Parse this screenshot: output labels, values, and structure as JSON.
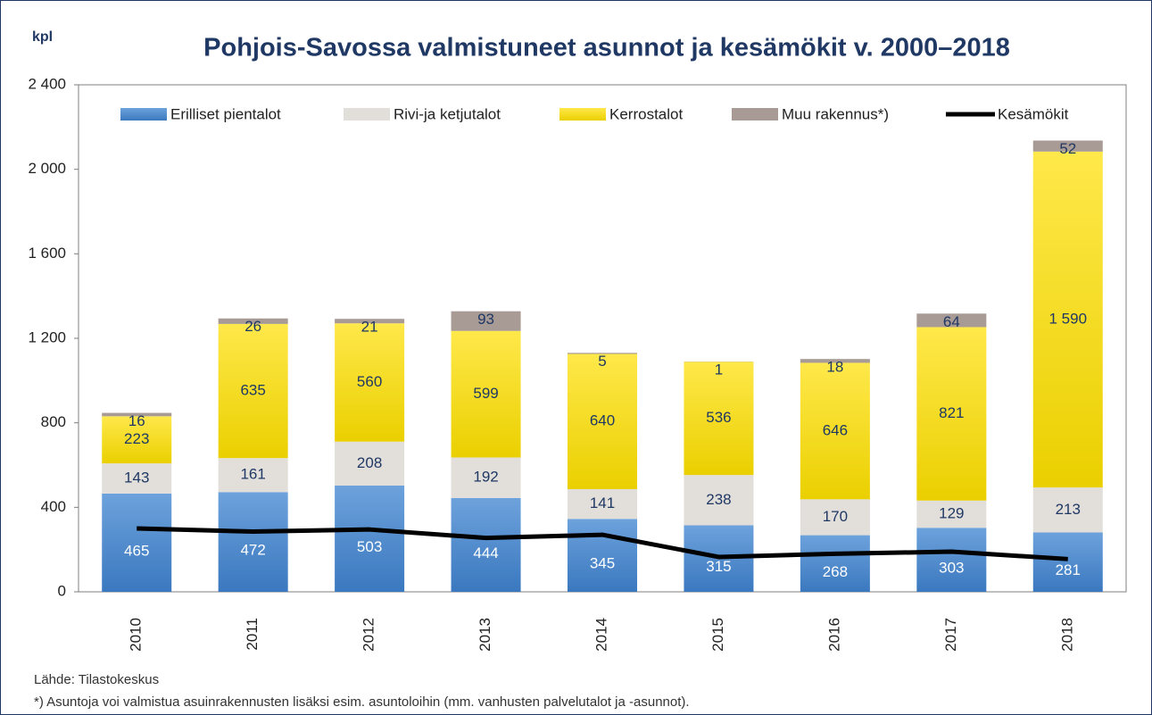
{
  "chart_data": {
    "type": "bar",
    "stacked": true,
    "title": "Pohjois-Savossa valmistuneet asunnot ja kesämökit v. 2000–2018",
    "y_label": "kpl",
    "notes": [
      "Lähde: Tilastokeskus",
      "*) Asuntoja voi valmistua asuinrakennusten lisäksi esim. asuntoloihin (mm. vanhusten palvelutalot ja -asunnot)."
    ],
    "categories": [
      "2010",
      "2011",
      "2012",
      "2013",
      "2014",
      "2015",
      "2016",
      "2017",
      "2018"
    ],
    "ylim": [
      0,
      2400
    ],
    "yticks": [
      0,
      400,
      800,
      {
        "value": 1200,
        "label": "1 200"
      },
      {
        "value": 1600,
        "label": "1 600"
      },
      {
        "value": 2000,
        "label": "2 000"
      },
      {
        "value": 2400,
        "label": "2 400"
      }
    ],
    "series": [
      {
        "name": "Erilliset pientalot",
        "color": "#4a86c8",
        "values": [
          465,
          472,
          503,
          444,
          345,
          315,
          268,
          303,
          281
        ]
      },
      {
        "name": "Rivi-ja ketjutalot",
        "color": "#e2deda",
        "values": [
          143,
          161,
          208,
          192,
          141,
          238,
          170,
          129,
          213
        ]
      },
      {
        "name": "Kerrostalot",
        "color": "#f5d800",
        "values": [
          223,
          635,
          560,
          599,
          640,
          536,
          646,
          821,
          1590
        ],
        "value_labels": [
          "223",
          "635",
          "560",
          "599",
          "640",
          "536",
          "646",
          "821",
          "1 590"
        ]
      },
      {
        "name": "Muu rakennus*)",
        "color": "#a89a94",
        "values": [
          16,
          26,
          21,
          93,
          5,
          1,
          18,
          64,
          52
        ]
      },
      {
        "name": "Kesämökit",
        "color": "#000000",
        "type": "line",
        "values": [
          300,
          285,
          295,
          255,
          270,
          165,
          180,
          190,
          155
        ]
      }
    ]
  }
}
